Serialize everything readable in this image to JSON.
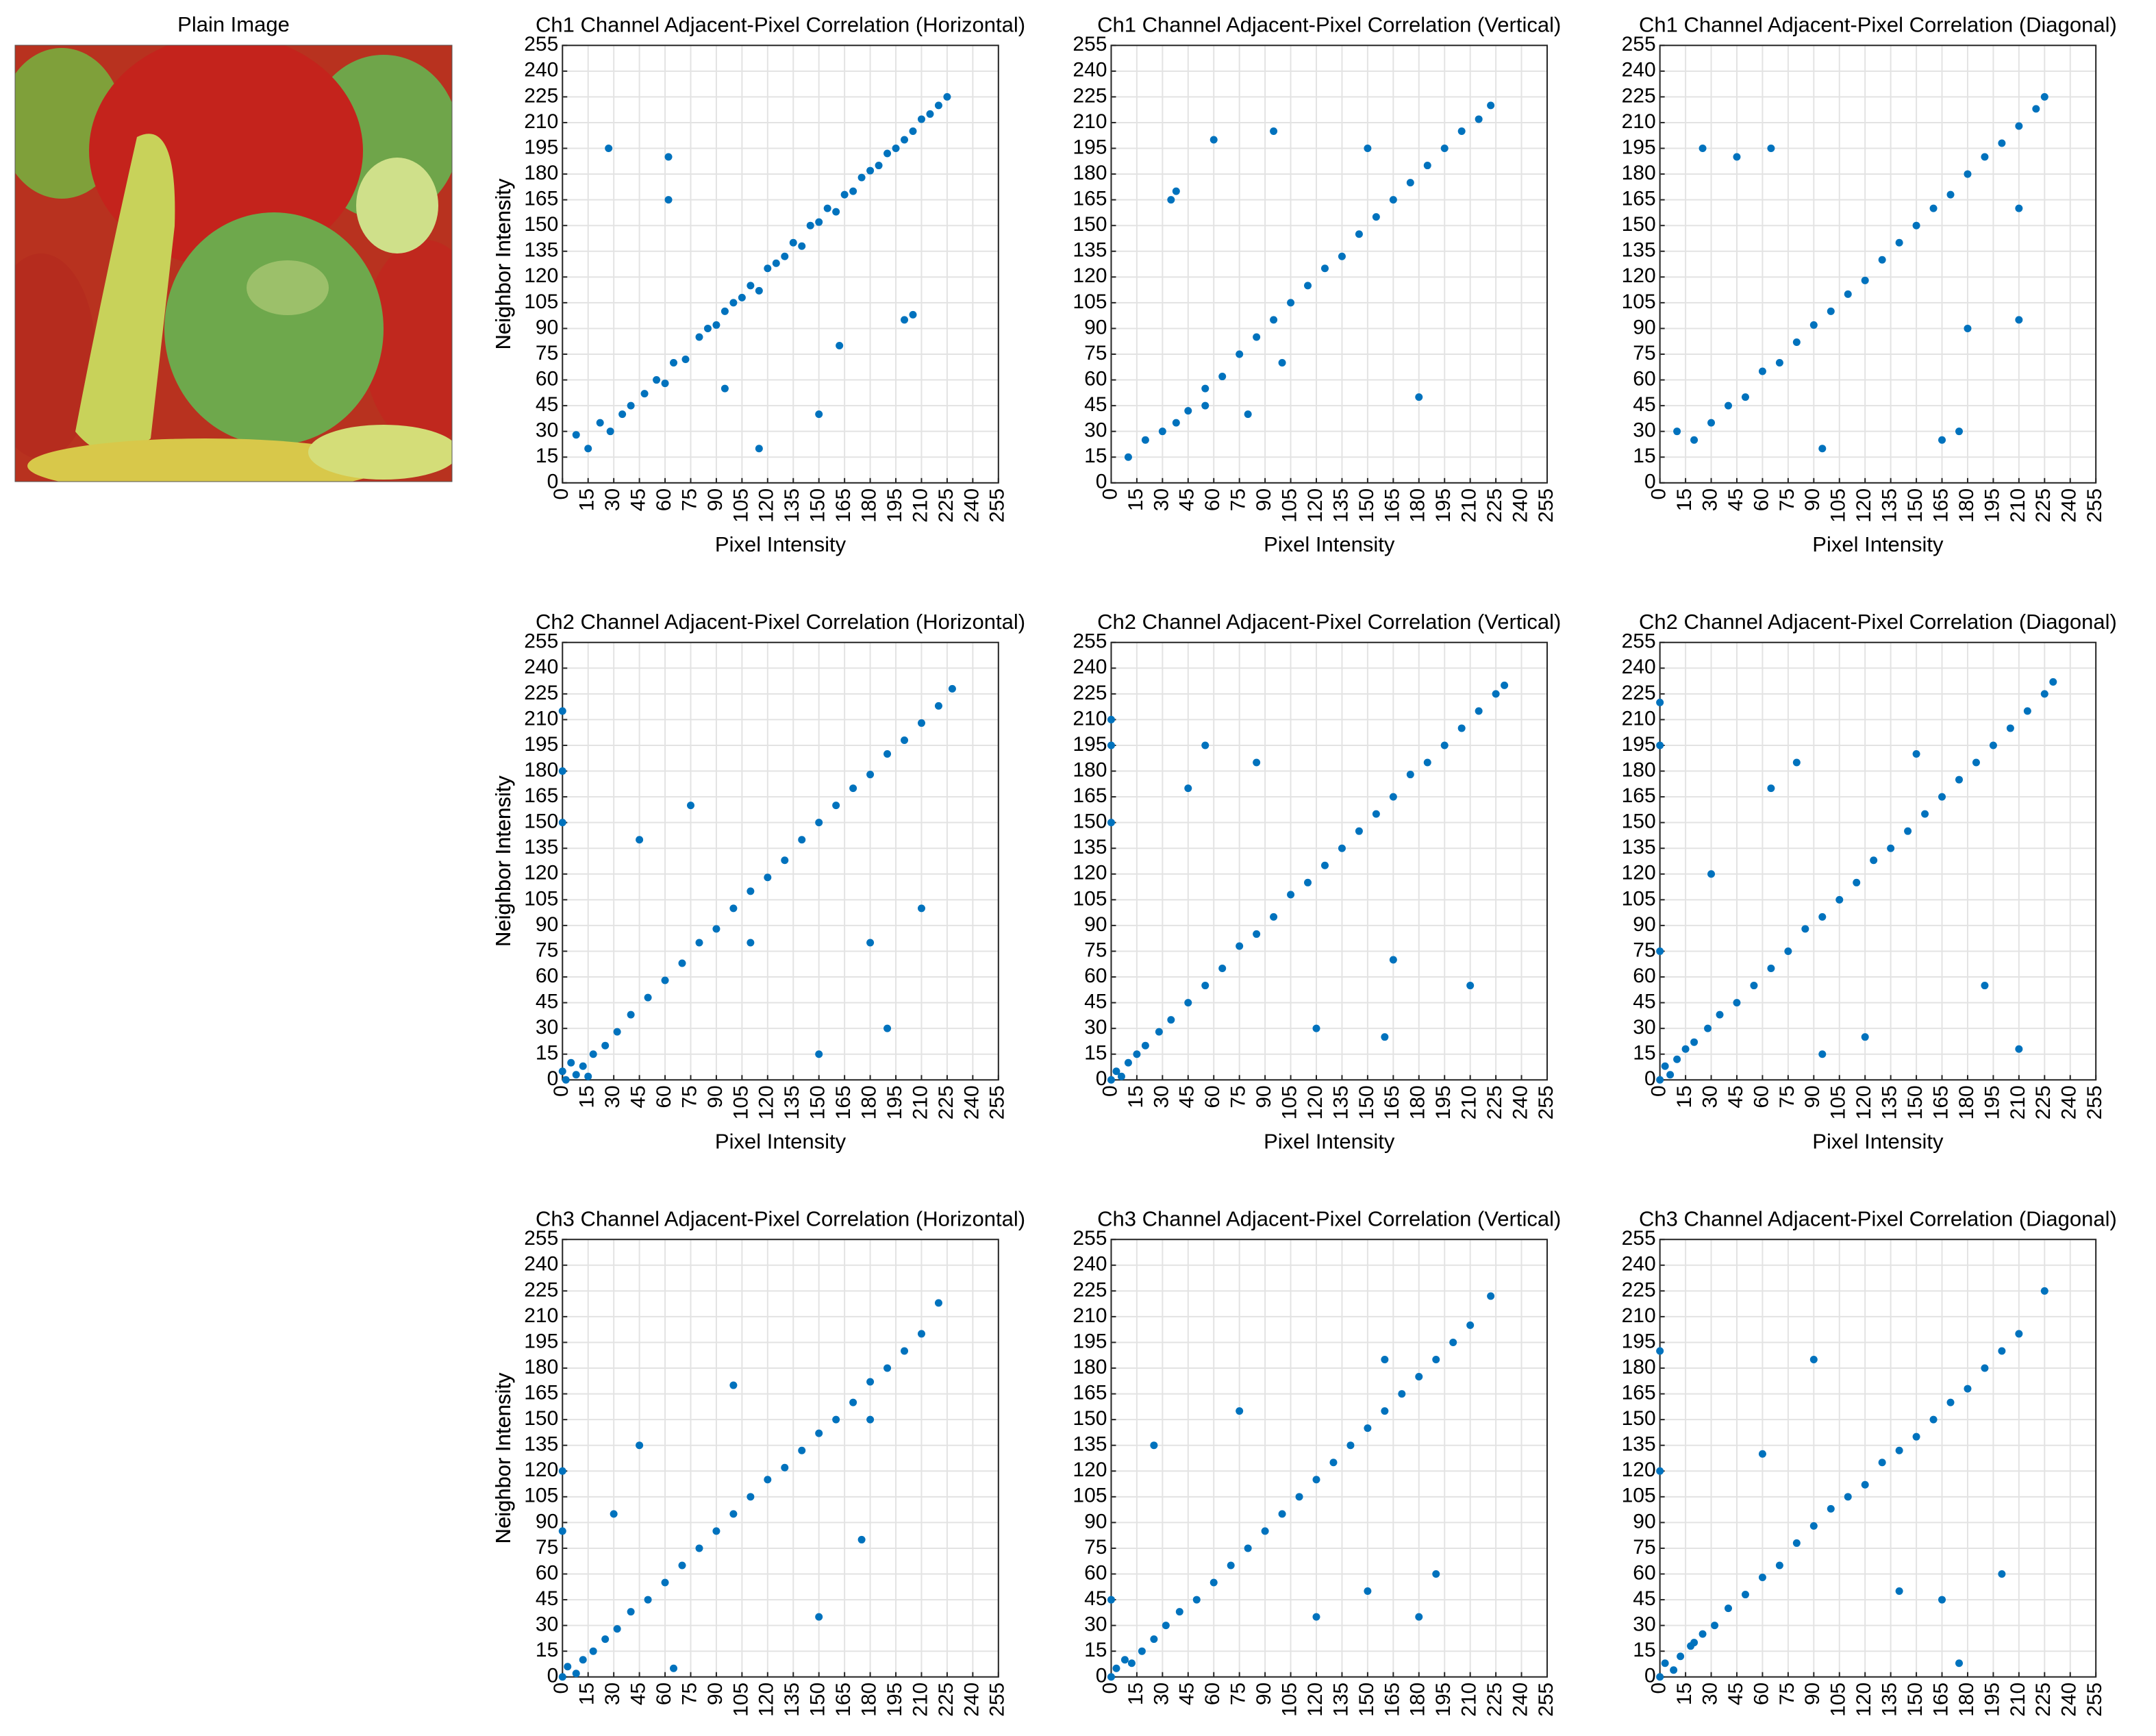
{
  "image": {
    "title": "Plain Image"
  },
  "chart_data": [
    {
      "type": "scatter",
      "title": "Ch1 Channel Adjacent-Pixel Correlation (Horizontal)",
      "xlabel": "Pixel Intensity",
      "ylabel": "Neighbor Intensity",
      "color": "#0072bd",
      "grid": true,
      "xlim": [
        0,
        255
      ],
      "ylim": [
        0,
        255
      ],
      "xticks": [
        0,
        15,
        30,
        45,
        60,
        75,
        90,
        105,
        120,
        135,
        150,
        165,
        180,
        195,
        210,
        225,
        240,
        255
      ],
      "yticks": [
        0,
        15,
        30,
        45,
        60,
        75,
        90,
        105,
        120,
        135,
        150,
        165,
        180,
        195,
        210,
        225,
        240,
        255
      ],
      "x": [
        8,
        15,
        22,
        28,
        35,
        40,
        48,
        55,
        60,
        65,
        72,
        80,
        85,
        90,
        95,
        100,
        105,
        110,
        115,
        120,
        125,
        130,
        135,
        140,
        145,
        150,
        155,
        160,
        165,
        170,
        175,
        180,
        185,
        190,
        195,
        200,
        205,
        210,
        215,
        220,
        225,
        27,
        62,
        62,
        162,
        200,
        205,
        150,
        115,
        95
      ],
      "y": [
        28,
        20,
        35,
        30,
        40,
        45,
        52,
        60,
        58,
        70,
        72,
        85,
        90,
        92,
        100,
        105,
        108,
        115,
        112,
        125,
        128,
        132,
        140,
        138,
        150,
        152,
        160,
        158,
        168,
        170,
        178,
        182,
        185,
        192,
        195,
        200,
        205,
        212,
        215,
        220,
        225,
        195,
        190,
        165,
        80,
        95,
        98,
        40,
        20,
        55
      ]
    },
    {
      "type": "scatter",
      "title": "Ch1 Channel Adjacent-Pixel Correlation (Vertical)",
      "xlabel": "Pixel Intensity",
      "ylabel": "Neighbor Intensity",
      "color": "#0072bd",
      "grid": true,
      "xlim": [
        0,
        255
      ],
      "ylim": [
        0,
        255
      ],
      "xticks": [
        0,
        15,
        30,
        45,
        60,
        75,
        90,
        105,
        120,
        135,
        150,
        165,
        180,
        195,
        210,
        225,
        240,
        255
      ],
      "yticks": [
        0,
        15,
        30,
        45,
        60,
        75,
        90,
        105,
        120,
        135,
        150,
        165,
        180,
        195,
        210,
        225,
        240,
        255
      ],
      "x": [
        10,
        20,
        30,
        38,
        45,
        55,
        65,
        75,
        85,
        95,
        105,
        115,
        125,
        135,
        145,
        155,
        165,
        175,
        185,
        195,
        205,
        215,
        222,
        35,
        38,
        55,
        95,
        150,
        180,
        100,
        60,
        80
      ],
      "y": [
        15,
        25,
        30,
        35,
        42,
        55,
        62,
        75,
        85,
        95,
        105,
        115,
        125,
        132,
        145,
        155,
        165,
        175,
        185,
        195,
        205,
        212,
        220,
        165,
        170,
        45,
        205,
        195,
        50,
        70,
        200,
        40
      ]
    },
    {
      "type": "scatter",
      "title": "Ch1 Channel Adjacent-Pixel Correlation (Diagonal)",
      "xlabel": "Pixel Intensity",
      "ylabel": "Neighbor Intensity",
      "color": "#0072bd",
      "grid": true,
      "xlim": [
        0,
        255
      ],
      "ylim": [
        0,
        255
      ],
      "xticks": [
        0,
        15,
        30,
        45,
        60,
        75,
        90,
        105,
        120,
        135,
        150,
        165,
        180,
        195,
        210,
        225,
        240,
        255
      ],
      "yticks": [
        0,
        15,
        30,
        45,
        60,
        75,
        90,
        105,
        120,
        135,
        150,
        165,
        180,
        195,
        210,
        225,
        240,
        255
      ],
      "x": [
        10,
        20,
        30,
        40,
        50,
        60,
        70,
        80,
        90,
        100,
        110,
        120,
        130,
        140,
        150,
        160,
        170,
        180,
        190,
        200,
        210,
        220,
        225,
        25,
        45,
        65,
        165,
        175,
        210,
        180,
        95,
        210
      ],
      "y": [
        30,
        25,
        35,
        45,
        50,
        65,
        70,
        82,
        92,
        100,
        110,
        118,
        130,
        140,
        150,
        160,
        168,
        180,
        190,
        198,
        208,
        218,
        225,
        195,
        190,
        195,
        25,
        30,
        95,
        90,
        20,
        160
      ]
    },
    {
      "type": "scatter",
      "title": "Ch2 Channel Adjacent-Pixel Correlation (Horizontal)",
      "xlabel": "Pixel Intensity",
      "ylabel": "Neighbor Intensity",
      "color": "#0072bd",
      "grid": true,
      "xlim": [
        0,
        255
      ],
      "ylim": [
        0,
        255
      ],
      "xticks": [
        0,
        15,
        30,
        45,
        60,
        75,
        90,
        105,
        120,
        135,
        150,
        165,
        180,
        195,
        210,
        225,
        240,
        255
      ],
      "yticks": [
        0,
        15,
        30,
        45,
        60,
        75,
        90,
        105,
        120,
        135,
        150,
        165,
        180,
        195,
        210,
        225,
        240,
        255
      ],
      "x": [
        0,
        2,
        5,
        8,
        12,
        18,
        25,
        32,
        40,
        50,
        60,
        70,
        80,
        90,
        100,
        110,
        120,
        130,
        140,
        150,
        160,
        170,
        180,
        190,
        200,
        210,
        220,
        228,
        0,
        0,
        0,
        75,
        150,
        210,
        180,
        190,
        110,
        45,
        15
      ],
      "y": [
        5,
        0,
        10,
        3,
        8,
        15,
        20,
        28,
        38,
        48,
        58,
        68,
        80,
        88,
        100,
        110,
        118,
        128,
        140,
        150,
        160,
        170,
        178,
        190,
        198,
        208,
        218,
        228,
        215,
        180,
        150,
        160,
        15,
        100,
        80,
        30,
        80,
        140,
        2
      ]
    },
    {
      "type": "scatter",
      "title": "Ch2 Channel Adjacent-Pixel Correlation (Vertical)",
      "xlabel": "Pixel Intensity",
      "ylabel": "Neighbor Intensity",
      "color": "#0072bd",
      "grid": true,
      "xlim": [
        0,
        255
      ],
      "ylim": [
        0,
        255
      ],
      "xticks": [
        0,
        15,
        30,
        45,
        60,
        75,
        90,
        105,
        120,
        135,
        150,
        165,
        180,
        195,
        210,
        225,
        240,
        255
      ],
      "yticks": [
        0,
        15,
        30,
        45,
        60,
        75,
        90,
        105,
        120,
        135,
        150,
        165,
        180,
        195,
        210,
        225,
        240,
        255
      ],
      "x": [
        0,
        3,
        6,
        10,
        15,
        20,
        28,
        35,
        45,
        55,
        65,
        75,
        85,
        95,
        105,
        115,
        125,
        135,
        145,
        155,
        165,
        175,
        185,
        195,
        205,
        215,
        225,
        230,
        0,
        0,
        0,
        55,
        85,
        120,
        160,
        210,
        165,
        45
      ],
      "y": [
        0,
        5,
        2,
        10,
        15,
        20,
        28,
        35,
        45,
        55,
        65,
        78,
        85,
        95,
        108,
        115,
        125,
        135,
        145,
        155,
        165,
        178,
        185,
        195,
        205,
        215,
        225,
        230,
        210,
        195,
        150,
        195,
        185,
        30,
        25,
        55,
        70,
        170
      ]
    },
    {
      "type": "scatter",
      "title": "Ch2 Channel Adjacent-Pixel Correlation (Diagonal)",
      "xlabel": "Pixel Intensity",
      "ylabel": "Neighbor Intensity",
      "color": "#0072bd",
      "grid": true,
      "xlim": [
        0,
        255
      ],
      "ylim": [
        0,
        255
      ],
      "xticks": [
        0,
        15,
        30,
        45,
        60,
        75,
        90,
        105,
        120,
        135,
        150,
        165,
        180,
        195,
        210,
        225,
        240,
        255
      ],
      "yticks": [
        0,
        15,
        30,
        45,
        60,
        75,
        90,
        105,
        120,
        135,
        150,
        165,
        180,
        195,
        210,
        225,
        240,
        255
      ],
      "x": [
        0,
        3,
        6,
        10,
        15,
        20,
        28,
        35,
        45,
        55,
        65,
        75,
        85,
        95,
        105,
        115,
        125,
        135,
        145,
        155,
        165,
        175,
        185,
        195,
        205,
        215,
        225,
        230,
        0,
        0,
        0,
        65,
        95,
        150,
        210,
        190,
        30,
        80,
        120
      ],
      "y": [
        0,
        8,
        3,
        12,
        18,
        22,
        30,
        38,
        45,
        55,
        65,
        75,
        88,
        95,
        105,
        115,
        128,
        135,
        145,
        155,
        165,
        175,
        185,
        195,
        205,
        215,
        225,
        232,
        220,
        195,
        75,
        170,
        15,
        190,
        18,
        55,
        120,
        185,
        25
      ]
    },
    {
      "type": "scatter",
      "title": "Ch3 Channel Adjacent-Pixel Correlation (Horizontal)",
      "ylabel": "Neighbor Intensity",
      "color": "#0072bd",
      "grid": true,
      "xlim": [
        0,
        255
      ],
      "ylim": [
        0,
        255
      ],
      "xticks": [
        0,
        15,
        30,
        45,
        60,
        75,
        90,
        105,
        120,
        135,
        150,
        165,
        180,
        195,
        210,
        225,
        240,
        255
      ],
      "yticks": [
        0,
        15,
        30,
        45,
        60,
        75,
        90,
        105,
        120,
        135,
        150,
        165,
        180,
        195,
        210,
        225,
        240,
        255
      ],
      "x": [
        0,
        3,
        8,
        12,
        18,
        25,
        32,
        40,
        50,
        60,
        70,
        80,
        90,
        100,
        110,
        120,
        130,
        140,
        150,
        160,
        170,
        180,
        190,
        200,
        210,
        220,
        0,
        0,
        45,
        65,
        150,
        175,
        100,
        180,
        30
      ],
      "y": [
        0,
        6,
        2,
        10,
        15,
        22,
        28,
        38,
        45,
        55,
        65,
        75,
        85,
        95,
        105,
        115,
        122,
        132,
        142,
        150,
        160,
        172,
        180,
        190,
        200,
        218,
        120,
        85,
        135,
        5,
        35,
        80,
        170,
        150,
        95
      ]
    },
    {
      "type": "scatter",
      "title": "Ch3 Channel Adjacent-Pixel Correlation (Vertical)",
      "ylabel": "Neighbor Intensity",
      "color": "#0072bd",
      "grid": true,
      "xlim": [
        0,
        255
      ],
      "ylim": [
        0,
        255
      ],
      "xticks": [
        0,
        15,
        30,
        45,
        60,
        75,
        90,
        105,
        120,
        135,
        150,
        165,
        180,
        195,
        210,
        225,
        240,
        255
      ],
      "yticks": [
        0,
        15,
        30,
        45,
        60,
        75,
        90,
        105,
        120,
        135,
        150,
        165,
        180,
        195,
        210,
        225,
        240,
        255
      ],
      "x": [
        0,
        3,
        8,
        12,
        18,
        25,
        32,
        40,
        50,
        60,
        70,
        80,
        90,
        100,
        110,
        120,
        130,
        140,
        150,
        160,
        170,
        180,
        190,
        200,
        210,
        222,
        0,
        25,
        75,
        120,
        180,
        190,
        160,
        150
      ],
      "y": [
        0,
        5,
        10,
        8,
        15,
        22,
        30,
        38,
        45,
        55,
        65,
        75,
        85,
        95,
        105,
        115,
        125,
        135,
        145,
        155,
        165,
        175,
        185,
        195,
        205,
        222,
        45,
        135,
        155,
        35,
        35,
        60,
        185,
        50
      ]
    },
    {
      "type": "scatter",
      "title": "Ch3 Channel Adjacent-Pixel Correlation (Diagonal)",
      "ylabel": "Neighbor Intensity",
      "color": "#0072bd",
      "grid": true,
      "xlim": [
        0,
        255
      ],
      "ylim": [
        0,
        255
      ],
      "xticks": [
        0,
        15,
        30,
        45,
        60,
        75,
        90,
        105,
        120,
        135,
        150,
        165,
        180,
        195,
        210,
        225,
        240,
        255
      ],
      "yticks": [
        0,
        15,
        30,
        45,
        60,
        75,
        90,
        105,
        120,
        135,
        150,
        165,
        180,
        195,
        210,
        225,
        240,
        255
      ],
      "x": [
        0,
        3,
        8,
        12,
        18,
        25,
        32,
        40,
        50,
        60,
        70,
        80,
        90,
        100,
        110,
        120,
        130,
        140,
        150,
        160,
        170,
        180,
        190,
        200,
        210,
        225,
        0,
        0,
        90,
        165,
        175,
        60,
        140,
        200,
        20
      ],
      "y": [
        0,
        8,
        4,
        12,
        18,
        25,
        30,
        40,
        48,
        58,
        65,
        78,
        88,
        98,
        105,
        112,
        125,
        132,
        140,
        150,
        160,
        168,
        180,
        190,
        200,
        225,
        190,
        120,
        185,
        45,
        8,
        130,
        50,
        60,
        20
      ]
    }
  ]
}
